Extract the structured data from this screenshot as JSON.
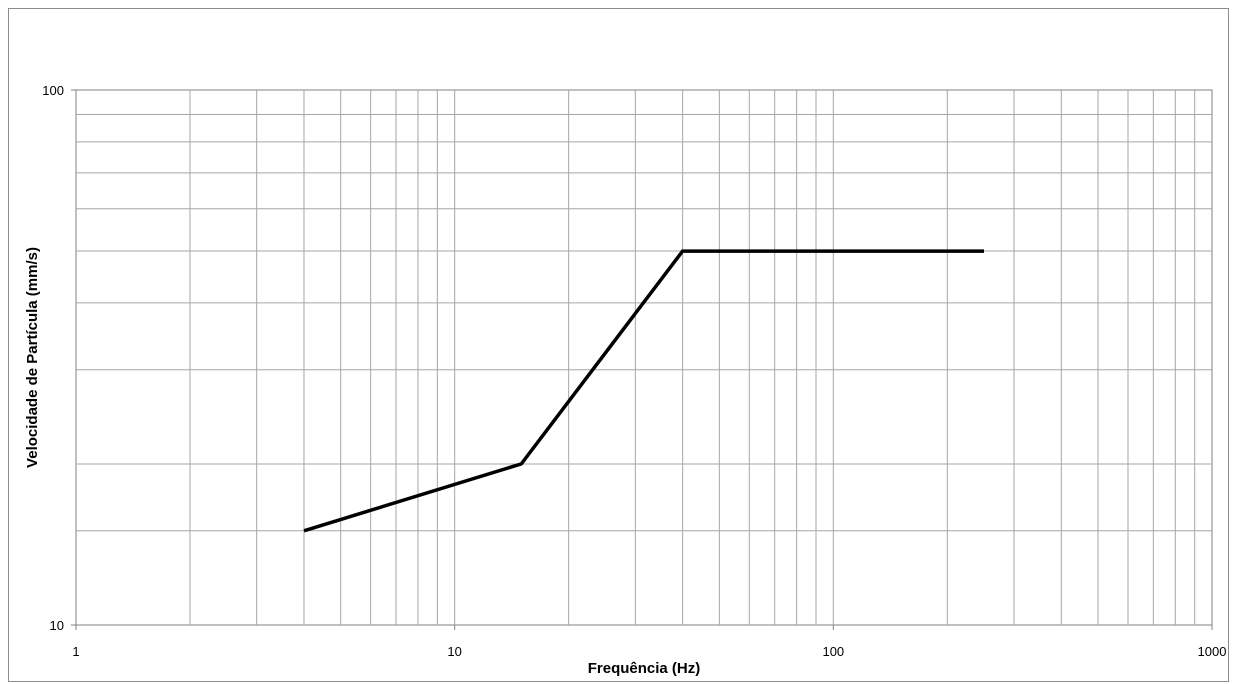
{
  "chart_data": {
    "type": "line",
    "title": "",
    "xlabel": "Frequência (Hz)",
    "ylabel": "Velocidade de Partícula (mm/s)",
    "x_scale": "log",
    "y_scale": "log",
    "xlim": [
      1,
      1000
    ],
    "ylim": [
      10,
      100
    ],
    "x_ticks": [
      {
        "value": 1,
        "label": "1"
      },
      {
        "value": 10,
        "label": "10"
      },
      {
        "value": 100,
        "label": "100"
      },
      {
        "value": 1000,
        "label": "1000"
      }
    ],
    "y_ticks": [
      {
        "value": 10,
        "label": "10"
      },
      {
        "value": 100,
        "label": "100"
      }
    ],
    "grid": true,
    "y_gridlines": [
      10,
      15,
      20,
      30,
      40,
      50,
      60,
      70,
      80,
      90,
      100
    ],
    "legend": "none",
    "series": [
      {
        "x": [
          4,
          15,
          40,
          250
        ],
        "y": [
          15,
          20,
          50,
          50
        ],
        "color": "#000000"
      }
    ]
  }
}
